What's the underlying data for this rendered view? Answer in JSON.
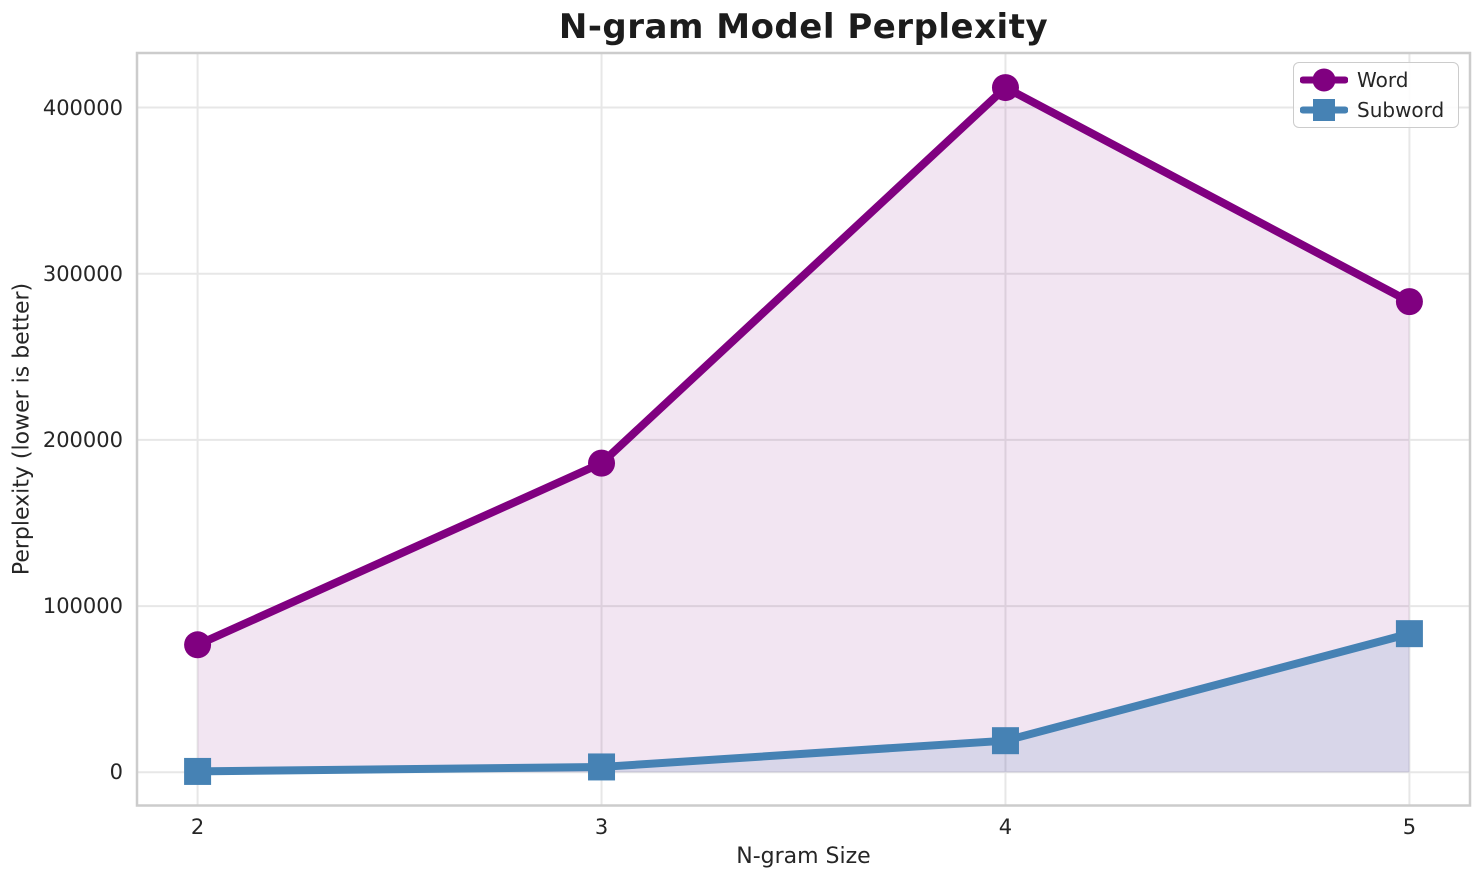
{
  "chart_data": {
    "type": "line",
    "title": "N-gram Model Perplexity",
    "xlabel": "N-gram Size",
    "ylabel": "Perplexity (lower is better)",
    "x": [
      2,
      3,
      4,
      5
    ],
    "x_tick_labels": [
      "2",
      "3",
      "4",
      "5"
    ],
    "y_ticks": [
      0,
      100000,
      200000,
      300000,
      400000
    ],
    "y_tick_labels": [
      "0",
      "100000",
      "200000",
      "300000",
      "400000"
    ],
    "xlim": [
      1.85,
      5.15
    ],
    "ylim": [
      -20000,
      432800
    ],
    "grid": true,
    "legend_position": "upper right",
    "series": [
      {
        "name": "Word",
        "marker": "circle",
        "color": "#800080",
        "fill_opacity": 0.1,
        "values": [
          76700,
          186000,
          412000,
          283200
        ]
      },
      {
        "name": "Subword",
        "marker": "square",
        "color": "#4682b4",
        "fill_opacity": 0.15,
        "values": [
          500,
          3200,
          19000,
          83400
        ]
      }
    ],
    "style": {
      "grid_color": "#e7e7e7",
      "spine_color": "#cccccc",
      "text_color": "#262626",
      "background": "#ffffff",
      "line_width": 8
    }
  }
}
